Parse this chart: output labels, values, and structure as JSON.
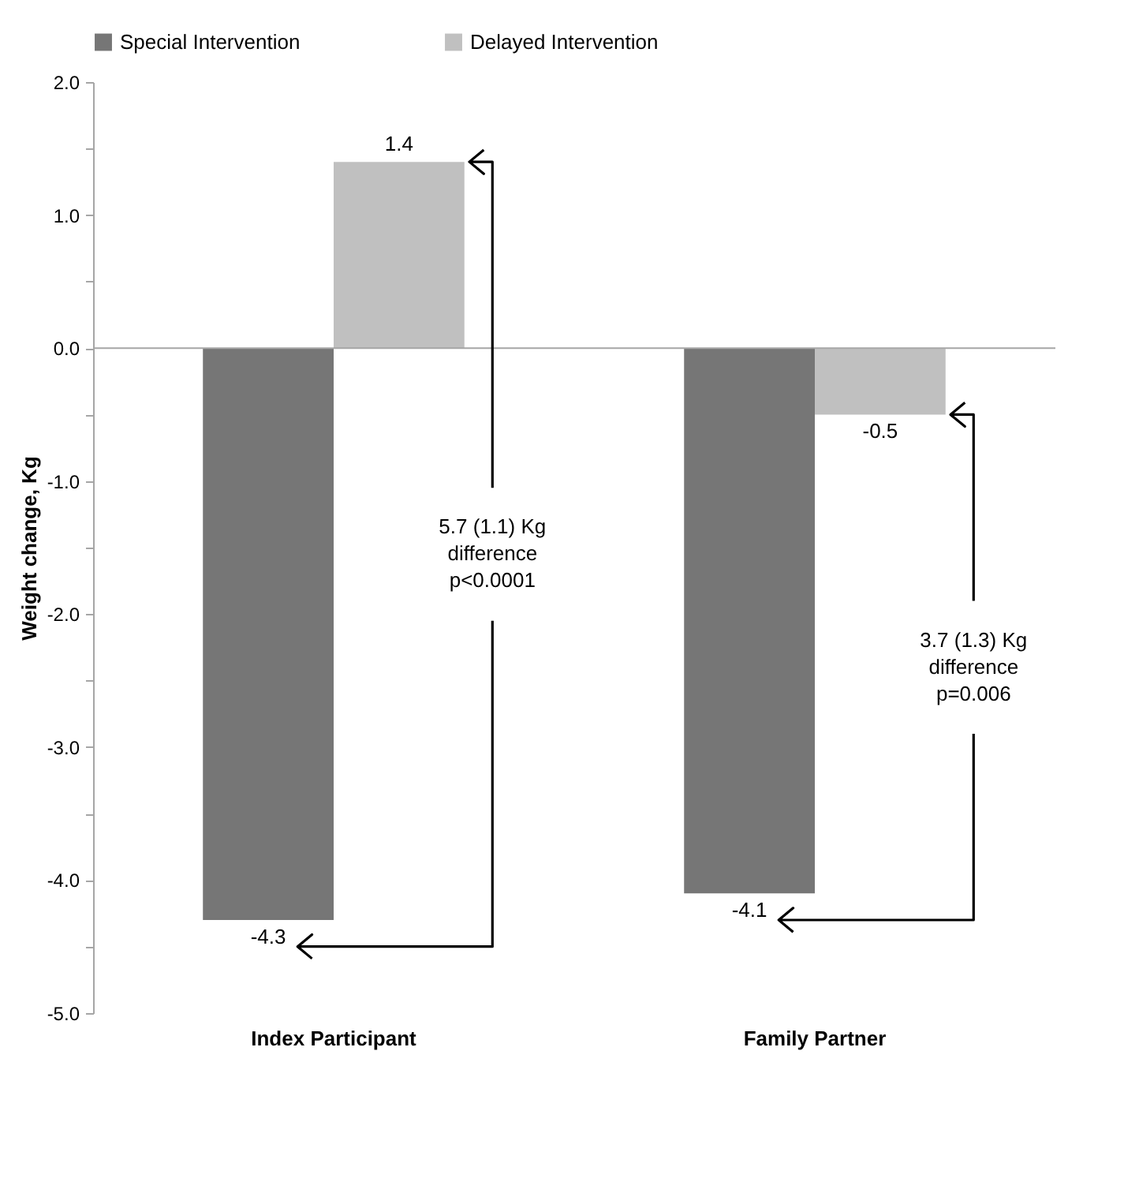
{
  "chart_data": {
    "type": "bar",
    "ylabel": "Weight change, Kg",
    "categories": [
      "Index Participant",
      "Family Partner"
    ],
    "series": [
      {
        "name": "Special Intervention",
        "color": "#767676",
        "values": [
          -4.3,
          -4.1
        ]
      },
      {
        "name": "Delayed Intervention",
        "color": "#c0c0c0",
        "values": [
          1.4,
          -0.5
        ]
      }
    ],
    "ylim": [
      -5,
      2
    ],
    "yticks": [
      {
        "value": -5,
        "label": "-5.0"
      },
      {
        "value": -4.5,
        "label": null
      },
      {
        "value": -4,
        "label": "-4.0"
      },
      {
        "value": -3.5,
        "label": null
      },
      {
        "value": -3,
        "label": "-3.0"
      },
      {
        "value": -2.5,
        "label": null
      },
      {
        "value": -2,
        "label": "-2.0"
      },
      {
        "value": -1.5,
        "label": null
      },
      {
        "value": -1,
        "label": "-1.0"
      },
      {
        "value": -0.5,
        "label": null
      },
      {
        "value": 0,
        "label": "0.0"
      },
      {
        "value": 0.5,
        "label": null
      },
      {
        "value": 1,
        "label": "1.0"
      },
      {
        "value": 1.5,
        "label": null
      },
      {
        "value": 2,
        "label": "2.0"
      }
    ],
    "ref_lines": [
      {
        "axis": "y",
        "value": 0,
        "color": "#a6a6a6"
      }
    ],
    "data_labels": true,
    "annotations": [
      "5.7 (1.1) Kg\ndifference\np<0.0001",
      "3.7 (1.3) Kg\ndifference\np=0.006"
    ],
    "legend": "top",
    "grid": false
  }
}
